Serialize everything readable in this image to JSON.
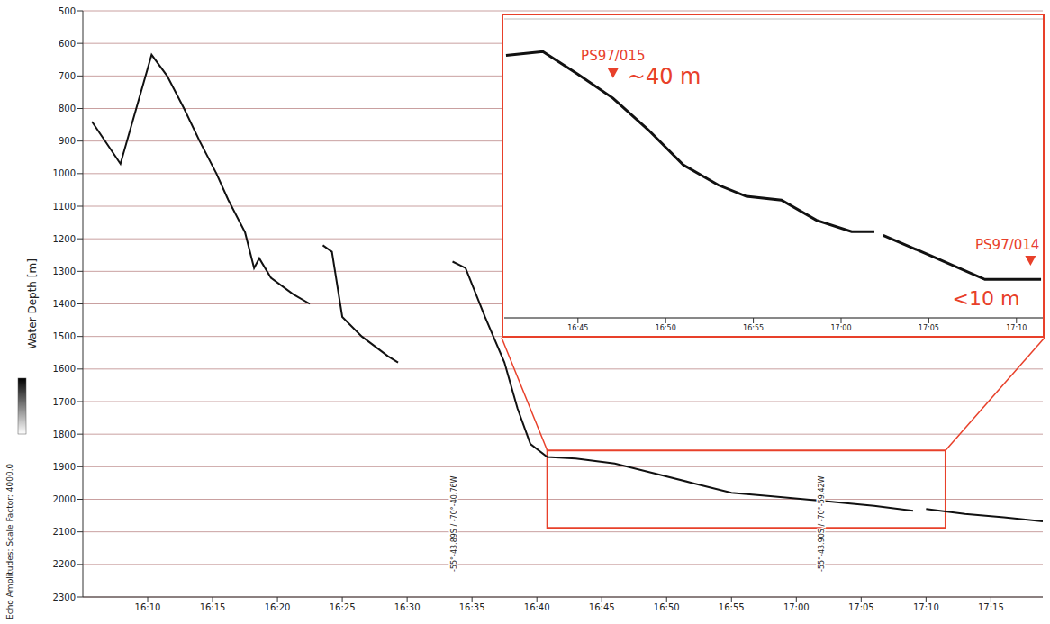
{
  "chart_data": [
    {
      "type": "line",
      "y_label": "Water Depth [m]",
      "x": [
        965.7,
        967.9,
        970.3,
        971.5,
        972.8,
        974,
        975.3,
        976.2,
        977.5,
        978.2,
        978.6,
        979.5,
        981.2,
        982.5,
        983,
        983.5,
        984.2,
        985,
        986.5,
        988.5,
        989.3,
        990,
        993.5,
        994.5,
        996,
        997.5,
        998.5,
        999.5,
        1000.8,
        1003,
        1006,
        1009,
        1012,
        1015,
        1018,
        1022,
        1026,
        1029,
        1029.5,
        1030,
        1033,
        1036,
        1039
      ],
      "values": [
        840,
        970,
        635,
        700,
        800,
        900,
        1000,
        1080,
        1180,
        1290,
        1260,
        1320,
        1370,
        1400,
        null,
        1220,
        1240,
        1440,
        1500,
        1560,
        1580,
        null,
        1270,
        1290,
        1440,
        1580,
        1720,
        1830,
        1870,
        1875,
        1890,
        1920,
        1950,
        1980,
        1990,
        2005,
        2020,
        2035,
        null,
        2030,
        2045,
        2055,
        2068
      ],
      "color": "#111111",
      "line_style": "solid",
      "xlim": [
        965,
        1039
      ],
      "xticks": [
        {
          "value": 970,
          "label": "16:10"
        },
        {
          "value": 975,
          "label": "16:15"
        },
        {
          "value": 980,
          "label": "16:20"
        },
        {
          "value": 985,
          "label": "16:25"
        },
        {
          "value": 990,
          "label": "16:30"
        },
        {
          "value": 995,
          "label": "16:35"
        },
        {
          "value": 1000,
          "label": "16:40"
        },
        {
          "value": 1005,
          "label": "16:45"
        },
        {
          "value": 1010,
          "label": "16:50"
        },
        {
          "value": 1015,
          "label": "16:55"
        },
        {
          "value": 1020,
          "label": "17:00"
        },
        {
          "value": 1025,
          "label": "17:05"
        },
        {
          "value": 1030,
          "label": "17:10"
        },
        {
          "value": 1035,
          "label": "17:15"
        }
      ],
      "ylim": [
        500,
        2300
      ],
      "yticks": [
        500,
        600,
        700,
        800,
        900,
        1000,
        1100,
        1200,
        1300,
        1400,
        1500,
        1600,
        1700,
        1800,
        1900,
        2000,
        2100,
        2200,
        2300
      ],
      "grid": true,
      "annotations": [
        {
          "text": "-55°-43.89S / -70°-40.76W",
          "x": 993.6
        },
        {
          "text": "-55°-43.90S / -70°-59.42W",
          "x": 1021.9
        }
      ],
      "colorbar": {
        "label": "Echo Amplitudes: Scale Factor: 4000.0"
      }
    },
    {
      "type": "line",
      "x": [
        1000.9,
        1003,
        1005,
        1007,
        1009,
        1011,
        1013,
        1014.6,
        1016.6,
        1018.6,
        1020.6,
        1021.9,
        1022.2,
        1022.4,
        1025.1,
        1028.2,
        1031.4
      ],
      "values": [
        1879,
        1876,
        1894,
        1913,
        1938,
        1966,
        1982,
        1991,
        1994,
        2010,
        2019,
        2019,
        null,
        2022,
        2038,
        2057,
        2057
      ],
      "color": "#111111",
      "line_style": "solid",
      "xlim": [
        1000.8,
        1031.5
      ],
      "xticks": [
        {
          "value": 1005,
          "label": "16:45"
        },
        {
          "value": 1010,
          "label": "16:50"
        },
        {
          "value": 1015,
          "label": "16:55"
        },
        {
          "value": 1020,
          "label": "17:00"
        },
        {
          "value": 1025,
          "label": "17:05"
        },
        {
          "value": 1030,
          "label": "17:10"
        }
      ],
      "ylim": [
        1850,
        2087.5
      ],
      "yticks": [
        1850,
        1862.5,
        1875,
        1887.5,
        1900,
        1912.5,
        1925,
        1937.5,
        1950,
        1962.5,
        1975,
        1987.5,
        2000,
        2012.5,
        2025,
        2037.5,
        2050,
        2062.5,
        2075,
        2087.5
      ],
      "grid": true,
      "tick_labels": "x",
      "annotations": [
        {
          "label": "PS97/015",
          "note": "~40 m",
          "x": 1007,
          "y": 1897
        },
        {
          "label": "PS97/014",
          "note": "<10 m",
          "x": 1030.8,
          "y": 2046
        }
      ]
    }
  ]
}
